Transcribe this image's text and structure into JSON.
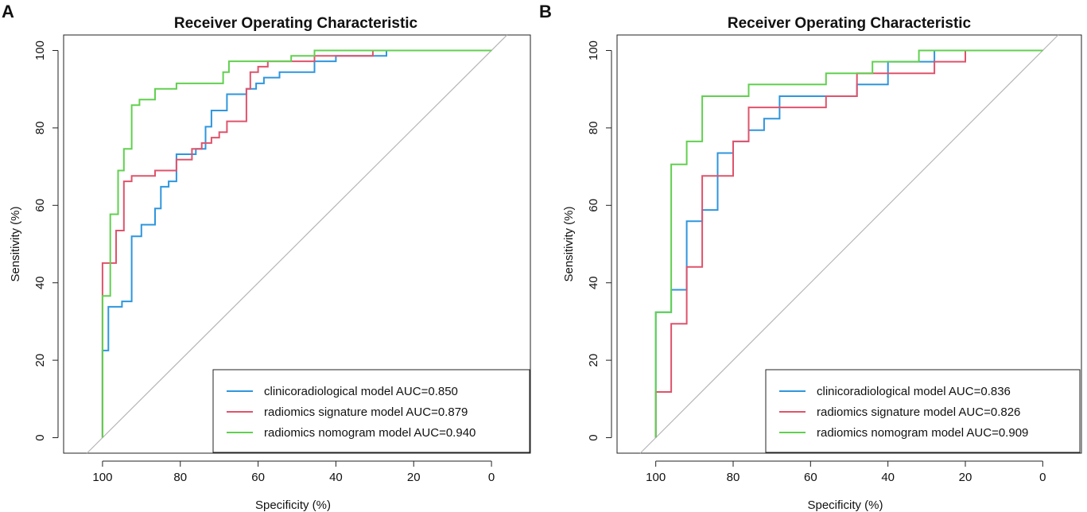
{
  "chart_data": [
    {
      "type": "line",
      "panel": "A",
      "title": "Receiver Operating Characteristic",
      "xlabel": "Specificity (%)",
      "ylabel": "Sensitivity (%)",
      "xlim": [
        110,
        -10
      ],
      "ylim": [
        -4,
        104
      ],
      "x_ticks": [
        100,
        80,
        60,
        40,
        20,
        0
      ],
      "y_ticks": [
        0,
        20,
        40,
        60,
        80,
        100
      ],
      "diagonal": true,
      "legend_position": "bottom-right",
      "series": [
        {
          "name": "clinicoradiological model",
          "label": "clinicoradiological model AUC=0.850",
          "auc": 0.85,
          "color": "#2E96DE",
          "points": [
            [
              100,
              0
            ],
            [
              100,
              22.5
            ],
            [
              98.5,
              22.5
            ],
            [
              98.5,
              33.8
            ],
            [
              95,
              33.8
            ],
            [
              95,
              35.2
            ],
            [
              92.5,
              35.2
            ],
            [
              92.5,
              52
            ],
            [
              90,
              52
            ],
            [
              90,
              55
            ],
            [
              86.5,
              55
            ],
            [
              86.5,
              59.2
            ],
            [
              85,
              59.2
            ],
            [
              85,
              64.8
            ],
            [
              83,
              64.8
            ],
            [
              83,
              66.2
            ],
            [
              81,
              66.2
            ],
            [
              81,
              73.2
            ],
            [
              76,
              73.2
            ],
            [
              76,
              74.6
            ],
            [
              73.5,
              74.6
            ],
            [
              73.5,
              80.3
            ],
            [
              72,
              80.3
            ],
            [
              72,
              84.5
            ],
            [
              68,
              84.5
            ],
            [
              68,
              88.7
            ],
            [
              63,
              88.7
            ],
            [
              63,
              90.1
            ],
            [
              60.5,
              90.1
            ],
            [
              60.5,
              91.5
            ],
            [
              58.5,
              91.5
            ],
            [
              58.5,
              93
            ],
            [
              54.5,
              93
            ],
            [
              54.5,
              94.4
            ],
            [
              45.5,
              94.4
            ],
            [
              45.5,
              97.2
            ],
            [
              40,
              97.2
            ],
            [
              40,
              98.6
            ],
            [
              27,
              98.6
            ],
            [
              27,
              100
            ],
            [
              0,
              100
            ]
          ]
        },
        {
          "name": "radiomics signature model",
          "label": "radiomics signature model AUC=0.879",
          "auc": 0.879,
          "color": "#DF536B",
          "points": [
            [
              100,
              0
            ],
            [
              100,
              36.6
            ],
            [
              100,
              45.1
            ],
            [
              96.5,
              45.1
            ],
            [
              96.5,
              53.5
            ],
            [
              94.5,
              53.5
            ],
            [
              94.5,
              66.2
            ],
            [
              92.5,
              66.2
            ],
            [
              92.5,
              67.6
            ],
            [
              86.5,
              67.6
            ],
            [
              86.5,
              69
            ],
            [
              81,
              69
            ],
            [
              81,
              71.8
            ],
            [
              77,
              71.8
            ],
            [
              77,
              74.6
            ],
            [
              74.5,
              74.6
            ],
            [
              74.5,
              76.1
            ],
            [
              72,
              76.1
            ],
            [
              72,
              77.5
            ],
            [
              70,
              77.5
            ],
            [
              70,
              78.9
            ],
            [
              68,
              78.9
            ],
            [
              68,
              81.7
            ],
            [
              63,
              81.7
            ],
            [
              63,
              90.1
            ],
            [
              62,
              90.1
            ],
            [
              62,
              94.4
            ],
            [
              60,
              94.4
            ],
            [
              60,
              95.8
            ],
            [
              57.5,
              95.8
            ],
            [
              57.5,
              97.2
            ],
            [
              45.5,
              97.2
            ],
            [
              45.5,
              98.6
            ],
            [
              30.5,
              98.6
            ],
            [
              30.5,
              100
            ],
            [
              0,
              100
            ]
          ]
        },
        {
          "name": "radiomics nomogram model",
          "label": "radiomics nomogram model AUC=0.940",
          "auc": 0.94,
          "color": "#61D04F",
          "points": [
            [
              100,
              0
            ],
            [
              100,
              36.6
            ],
            [
              98,
              36.6
            ],
            [
              98,
              57.7
            ],
            [
              96,
              57.7
            ],
            [
              96,
              69
            ],
            [
              94.5,
              69
            ],
            [
              94.5,
              74.6
            ],
            [
              92.5,
              74.6
            ],
            [
              92.5,
              85.9
            ],
            [
              90.5,
              85.9
            ],
            [
              90.5,
              87.3
            ],
            [
              86.5,
              87.3
            ],
            [
              86.5,
              90.1
            ],
            [
              81,
              90.1
            ],
            [
              81,
              91.5
            ],
            [
              69,
              91.5
            ],
            [
              69,
              94.4
            ],
            [
              67.5,
              94.4
            ],
            [
              67.5,
              97.2
            ],
            [
              51.5,
              97.2
            ],
            [
              51.5,
              98.6
            ],
            [
              45.5,
              98.6
            ],
            [
              45.5,
              100
            ],
            [
              0,
              100
            ]
          ]
        }
      ]
    },
    {
      "type": "line",
      "panel": "B",
      "title": "Receiver Operating Characteristic",
      "xlabel": "Specificity (%)",
      "ylabel": "Sensitivity (%)",
      "xlim": [
        110,
        -10
      ],
      "ylim": [
        -4,
        104
      ],
      "x_ticks": [
        100,
        80,
        60,
        40,
        20,
        0
      ],
      "y_ticks": [
        0,
        20,
        40,
        60,
        80,
        100
      ],
      "diagonal": true,
      "legend_position": "bottom-right",
      "series": [
        {
          "name": "clinicoradiological model",
          "label": "clinicoradiological model AUC=0.836",
          "auc": 0.836,
          "color": "#2E96DE",
          "points": [
            [
              100,
              0
            ],
            [
              100,
              32.4
            ],
            [
              96,
              32.4
            ],
            [
              96,
              38.2
            ],
            [
              92,
              38.2
            ],
            [
              92,
              55.9
            ],
            [
              88,
              55.9
            ],
            [
              88,
              58.8
            ],
            [
              84,
              58.8
            ],
            [
              84,
              73.5
            ],
            [
              80,
              73.5
            ],
            [
              80,
              76.5
            ],
            [
              76,
              76.5
            ],
            [
              76,
              79.4
            ],
            [
              72,
              79.4
            ],
            [
              72,
              82.4
            ],
            [
              68,
              82.4
            ],
            [
              68,
              88.2
            ],
            [
              48,
              88.2
            ],
            [
              48,
              91.2
            ],
            [
              40,
              91.2
            ],
            [
              40,
              97.1
            ],
            [
              28,
              97.1
            ],
            [
              28,
              100
            ],
            [
              0,
              100
            ]
          ]
        },
        {
          "name": "radiomics signature model",
          "label": "radiomics signature model AUC=0.826",
          "auc": 0.826,
          "color": "#DF536B",
          "points": [
            [
              100,
              0
            ],
            [
              100,
              11.8
            ],
            [
              96,
              11.8
            ],
            [
              96,
              29.4
            ],
            [
              92,
              29.4
            ],
            [
              92,
              44.1
            ],
            [
              88,
              44.1
            ],
            [
              88,
              67.6
            ],
            [
              80,
              67.6
            ],
            [
              80,
              76.5
            ],
            [
              76,
              76.5
            ],
            [
              76,
              85.3
            ],
            [
              56,
              85.3
            ],
            [
              56,
              88.2
            ],
            [
              48,
              88.2
            ],
            [
              48,
              94.1
            ],
            [
              28,
              94.1
            ],
            [
              28,
              97.1
            ],
            [
              20,
              97.1
            ],
            [
              20,
              100
            ],
            [
              0,
              100
            ]
          ]
        },
        {
          "name": "radiomics nomogram model",
          "label": "radiomics nomogram model AUC=0.909",
          "auc": 0.909,
          "color": "#61D04F",
          "points": [
            [
              100,
              0
            ],
            [
              100,
              32.4
            ],
            [
              96,
              32.4
            ],
            [
              96,
              70.6
            ],
            [
              92,
              70.6
            ],
            [
              92,
              76.5
            ],
            [
              88,
              76.5
            ],
            [
              88,
              88.2
            ],
            [
              76,
              88.2
            ],
            [
              76,
              91.2
            ],
            [
              56,
              91.2
            ],
            [
              56,
              94.1
            ],
            [
              44,
              94.1
            ],
            [
              44,
              97.1
            ],
            [
              32,
              97.1
            ],
            [
              32,
              100
            ],
            [
              0,
              100
            ]
          ]
        }
      ]
    }
  ]
}
